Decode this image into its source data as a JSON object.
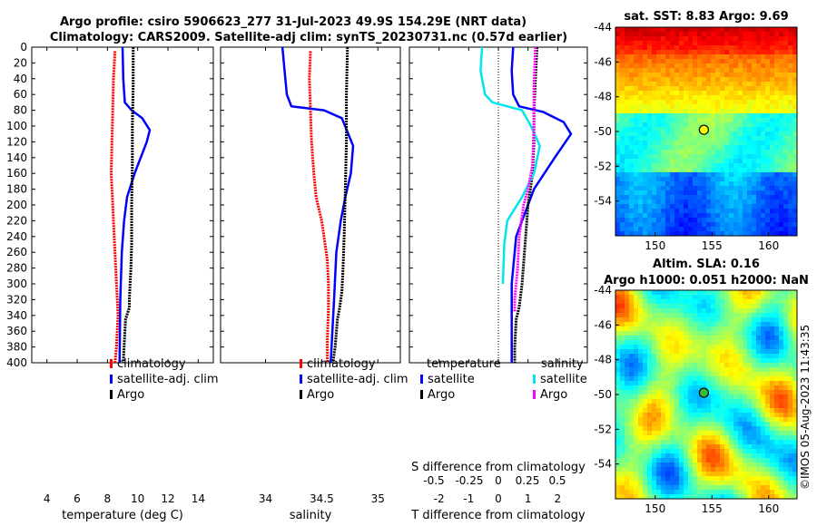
{
  "figure": {
    "title_line1": "Argo profile: csiro 5906623_277 31-Jul-2023 49.9S 154.29E (NRT data)",
    "title_line2": "Climatology: CARS2009. Satellite-adj clim: synTS_20230731.nc (0.57d earlier)",
    "side_stamp": "©IMOS 05-Aug-2023 11:43:35"
  },
  "colors": {
    "climatology": "#ff0000",
    "satellite": "#0000ff",
    "argo": "#000000",
    "sat_salinity": "#00e5ee",
    "argo_salinity": "#ff00ff"
  },
  "chart_data": [
    {
      "type": "line",
      "name": "temperature-profile",
      "xlabel": "temperature (deg C)",
      "ylabel": "",
      "xlim": [
        3,
        15
      ],
      "ylim": [
        400,
        0
      ],
      "xticks": [
        4,
        6,
        8,
        10,
        12,
        14
      ],
      "yticks": [
        0,
        20,
        40,
        60,
        80,
        100,
        120,
        140,
        160,
        180,
        200,
        220,
        240,
        260,
        280,
        300,
        320,
        340,
        360,
        380,
        400
      ],
      "legend": [
        "climatology",
        "satellite-adj. clim",
        "Argo"
      ],
      "series": [
        {
          "name": "climatology",
          "color_key": "climatology",
          "dotted": true,
          "x": [
            8.5,
            8.4,
            8.35,
            8.3,
            8.25,
            8.3,
            8.35,
            8.45,
            8.55,
            8.6,
            8.65,
            8.7,
            8.6,
            8.5
          ],
          "y": [
            5,
            40,
            80,
            120,
            160,
            180,
            200,
            240,
            280,
            300,
            320,
            340,
            380,
            400
          ]
        },
        {
          "name": "satellite-adj. clim",
          "color_key": "satellite",
          "dotted": false,
          "x": [
            9.0,
            9.05,
            9.15,
            9.6,
            10.3,
            10.8,
            10.6,
            9.8,
            9.3,
            9.1,
            8.95,
            8.85,
            8.8
          ],
          "y": [
            0,
            40,
            70,
            80,
            90,
            105,
            120,
            160,
            190,
            220,
            260,
            320,
            400
          ]
        },
        {
          "name": "Argo",
          "color_key": "argo",
          "dotted": true,
          "x": [
            9.7,
            9.7,
            9.65,
            9.65,
            9.6,
            9.6,
            9.55,
            9.5,
            9.45,
            9.45,
            9.2,
            9.1,
            9.05
          ],
          "y": [
            0,
            50,
            100,
            150,
            200,
            250,
            280,
            300,
            320,
            330,
            345,
            380,
            400
          ]
        }
      ]
    },
    {
      "type": "line",
      "name": "salinity-profile",
      "xlabel": "salinity",
      "ylabel": "",
      "xlim": [
        33.6,
        35.2
      ],
      "ylim": [
        400,
        0
      ],
      "xticks": [
        34,
        34.5,
        35
      ],
      "legend": [
        "climatology",
        "satellite-adj. clim",
        "Argo"
      ],
      "series": [
        {
          "name": "climatology",
          "color_key": "climatology",
          "dotted": true,
          "x": [
            34.4,
            34.39,
            34.4,
            34.41,
            34.43,
            34.45,
            34.5,
            34.53,
            34.55,
            34.56,
            34.56,
            34.55,
            34.55
          ],
          "y": [
            5,
            40,
            80,
            120,
            160,
            190,
            220,
            250,
            270,
            300,
            330,
            370,
            400
          ]
        },
        {
          "name": "satellite-adj. clim",
          "color_key": "satellite",
          "dotted": false,
          "x": [
            34.15,
            34.17,
            34.19,
            34.23,
            34.52,
            34.68,
            34.78,
            34.76,
            34.71,
            34.67,
            34.63,
            34.61,
            34.58
          ],
          "y": [
            0,
            30,
            60,
            75,
            80,
            90,
            125,
            160,
            190,
            220,
            260,
            320,
            400
          ]
        },
        {
          "name": "Argo",
          "color_key": "argo",
          "dotted": true,
          "x": [
            34.73,
            34.72,
            34.72,
            34.71,
            34.7,
            34.69,
            34.68,
            34.66,
            34.64,
            34.62,
            34.6
          ],
          "y": [
            0,
            60,
            120,
            180,
            240,
            280,
            310,
            330,
            345,
            380,
            400
          ]
        }
      ]
    },
    {
      "type": "line",
      "name": "difference-profile",
      "xlabel": "T difference from climatology",
      "s_label": "S difference from climatology",
      "xlim": [
        -3,
        3
      ],
      "ylim": [
        400,
        0
      ],
      "xticks": [
        -2,
        -1,
        0,
        1,
        2
      ],
      "xtick_labels": [
        "-2",
        "-1",
        "0",
        "1",
        "2"
      ],
      "s_tick_labels": [
        "-0.5",
        "-0.25",
        "0",
        "0.25",
        "0.5"
      ],
      "legend_temperature_title": "temperature",
      "legend_salinity_title": "salinity",
      "legend_temperature": [
        "satellite",
        "Argo"
      ],
      "legend_salinity": [
        "satellite",
        "Argo"
      ],
      "series": [
        {
          "name": "satellite T",
          "color_key": "satellite",
          "dotted": false,
          "x": [
            0.5,
            0.45,
            0.5,
            0.7,
            1.5,
            2.2,
            2.45,
            1.9,
            1.2,
            0.6,
            0.45,
            0.45
          ],
          "y": [
            0,
            30,
            60,
            75,
            82,
            95,
            110,
            140,
            180,
            240,
            300,
            400
          ]
        },
        {
          "name": "Argo T",
          "color_key": "argo",
          "dotted": true,
          "x": [
            1.3,
            1.25,
            1.2,
            1.2,
            1.15,
            1.0,
            0.9,
            0.8,
            0.7,
            0.6,
            0.55,
            0.55
          ],
          "y": [
            0,
            40,
            80,
            120,
            160,
            200,
            250,
            300,
            330,
            345,
            380,
            400
          ]
        },
        {
          "name": "satellite S",
          "color_key": "sat_salinity",
          "dotted": false,
          "x": [
            -0.55,
            -0.6,
            -0.45,
            -0.2,
            0.8,
            1.1,
            1.4,
            1.2,
            0.8,
            0.3,
            0.2,
            0.15
          ],
          "y": [
            0,
            30,
            60,
            70,
            80,
            100,
            125,
            160,
            190,
            220,
            250,
            300
          ]
        },
        {
          "name": "Argo S",
          "color_key": "argo_salinity",
          "dotted": true,
          "x": [
            1.25,
            1.2,
            1.2,
            1.15,
            1.0,
            0.85,
            0.7,
            0.65,
            0.6,
            0.55,
            0.55
          ],
          "y": [
            0,
            50,
            100,
            150,
            180,
            200,
            240,
            280,
            300,
            320,
            335
          ]
        }
      ]
    },
    {
      "type": "heatmap",
      "name": "sst-map",
      "title": "sat. SST: 8.83 Argo: 9.69",
      "xlim": [
        146.5,
        162.5
      ],
      "ylim": [
        -56,
        -44
      ],
      "xticks": [
        150,
        155,
        160
      ],
      "yticks": [
        -44,
        -46,
        -48,
        -50,
        -52,
        -54
      ],
      "marker_lon": 154.29,
      "marker_lat": -49.9
    },
    {
      "type": "heatmap",
      "name": "sla-map",
      "title_line1": "Altim. SLA: 0.16",
      "title_line2": "Argo h1000: 0.051 h2000: NaN",
      "xlim": [
        146.5,
        162.5
      ],
      "ylim": [
        -56,
        -44
      ],
      "xticks": [
        150,
        155,
        160
      ],
      "yticks": [
        -44,
        -46,
        -48,
        -50,
        -52,
        -54
      ],
      "marker_lon": 154.29,
      "marker_lat": -49.9
    }
  ]
}
